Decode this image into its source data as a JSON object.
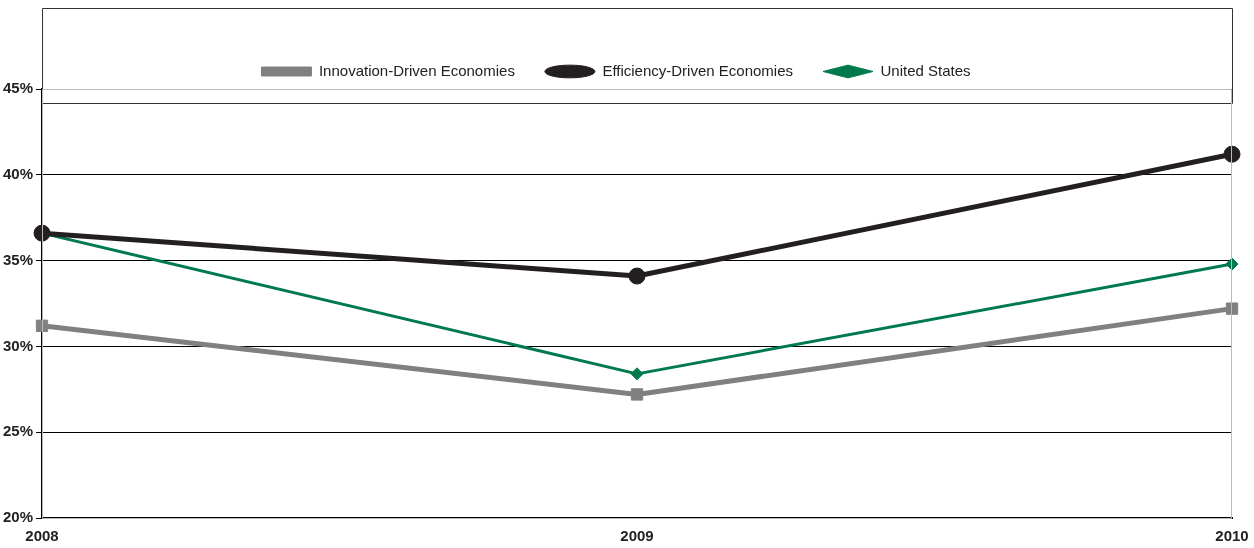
{
  "chart_data": {
    "type": "line",
    "categories": [
      "2008",
      "2009",
      "2010"
    ],
    "series": [
      {
        "name": "Innovation-Driven Economies",
        "color": "#808080",
        "values": [
          31.2,
          27.2,
          32.2
        ],
        "marker": "square"
      },
      {
        "name": "Efficiency-Driven Economies",
        "color": "#231f20",
        "values": [
          36.6,
          34.1,
          41.2
        ],
        "marker": "circle"
      },
      {
        "name": "United States",
        "color": "#007a4d",
        "values": [
          36.6,
          28.4,
          34.8
        ],
        "marker": "diamond"
      }
    ],
    "ylim": [
      20,
      45
    ],
    "yticks": [
      {
        "value": 20,
        "label": "20%"
      },
      {
        "value": 25,
        "label": "25%"
      },
      {
        "value": 30,
        "label": "30%"
      },
      {
        "value": 35,
        "label": "35%"
      },
      {
        "value": 40,
        "label": "40%"
      },
      {
        "value": 45,
        "label": "45%"
      }
    ],
    "grid": "y",
    "legend": "top",
    "line_style": "solid"
  }
}
